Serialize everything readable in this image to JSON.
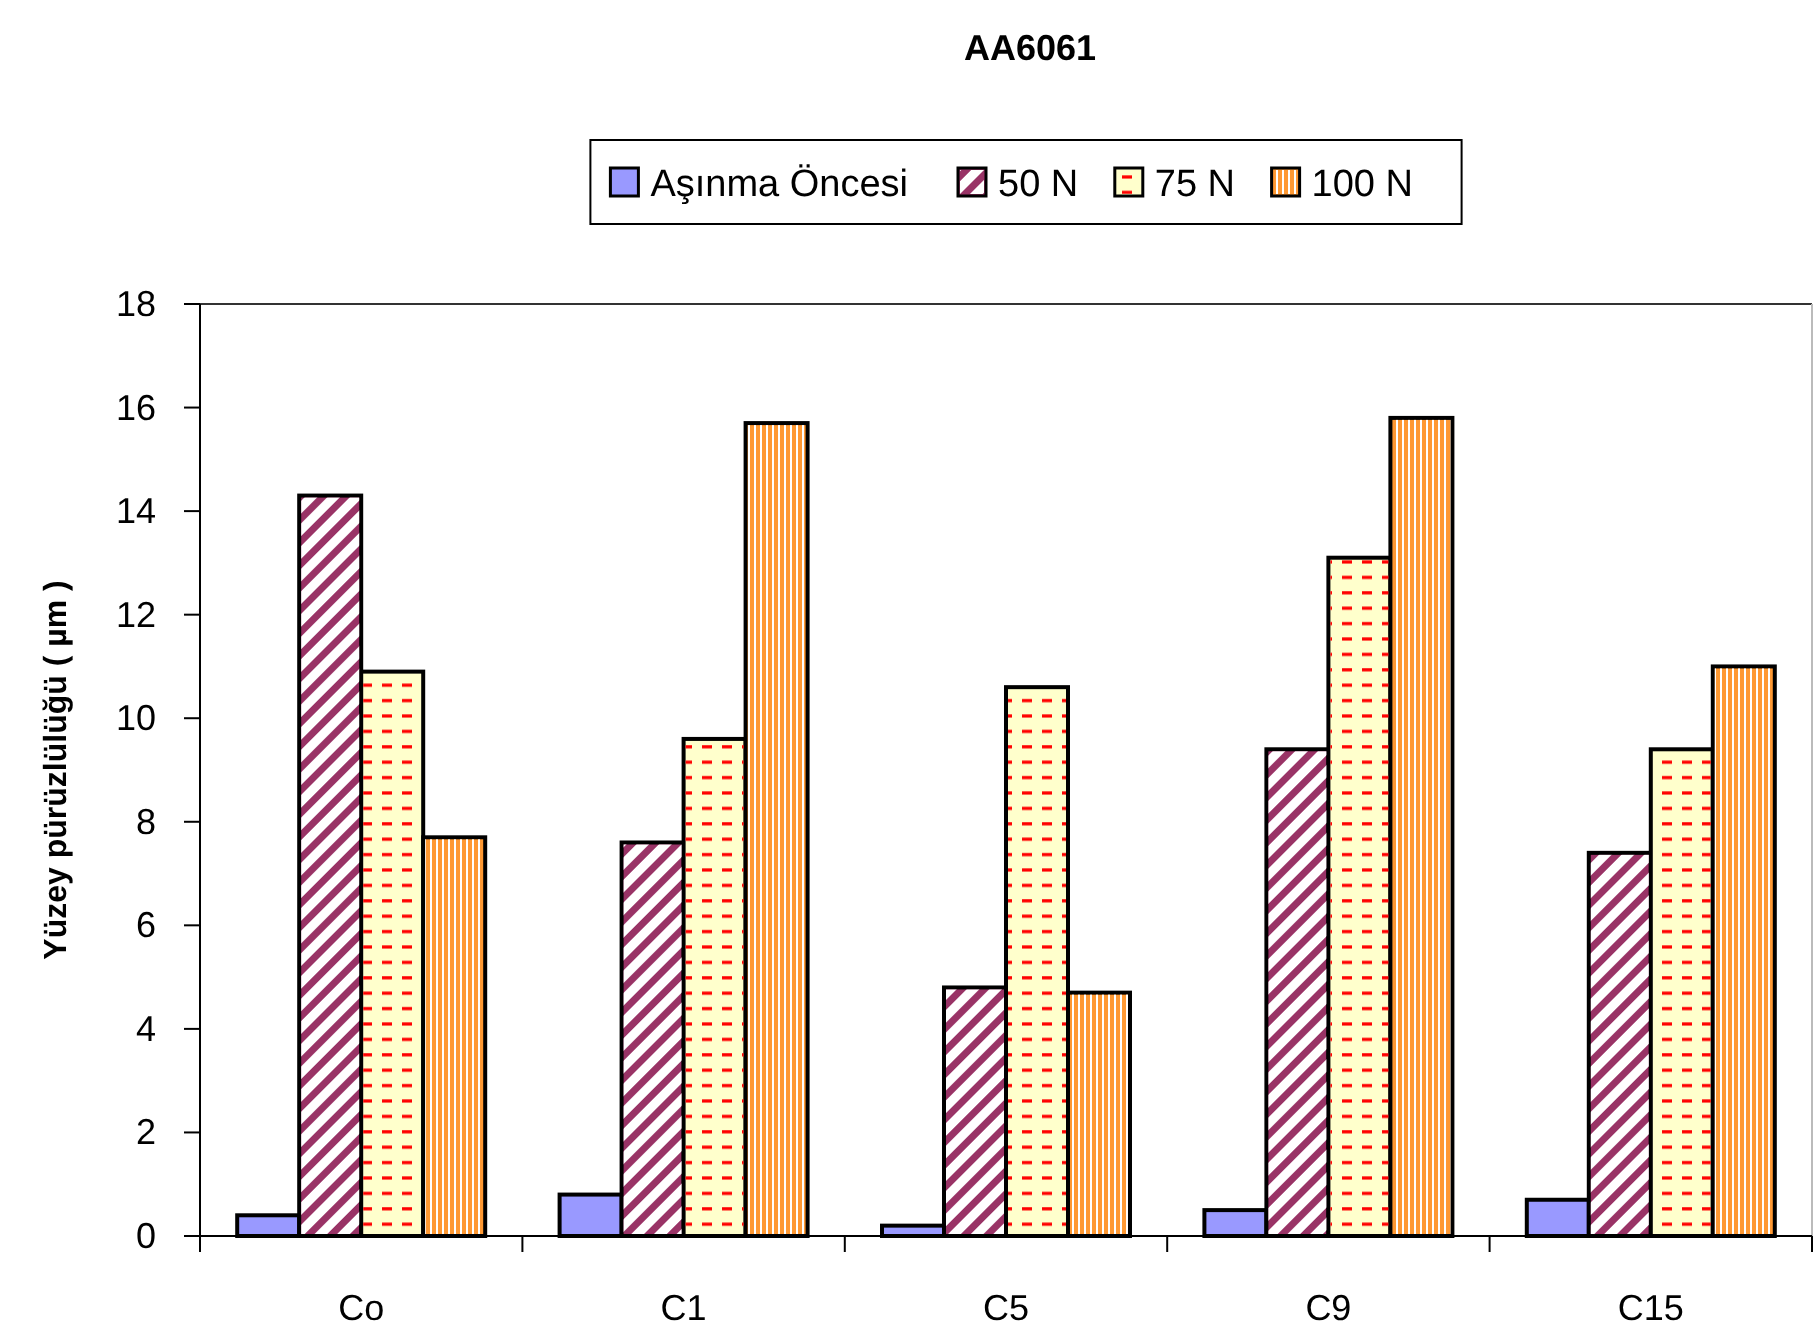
{
  "chart_data": {
    "type": "bar",
    "title": "AA6061",
    "ylabel": "Yüzey pürüzlülüğü ( µm )",
    "categories": [
      "Co",
      "C1",
      "C5",
      "C9",
      "C15"
    ],
    "series": [
      {
        "name": "Aşınma Öncesi",
        "color": "#9999ff",
        "values": [
          0.4,
          0.8,
          0.2,
          0.5,
          0.7
        ]
      },
      {
        "name": "50 N",
        "color": "#993366",
        "values": [
          14.3,
          7.6,
          4.8,
          9.4,
          7.4
        ]
      },
      {
        "name": "75 N",
        "color": "#ffffcc",
        "values": [
          10.9,
          9.6,
          10.6,
          13.1,
          9.4
        ]
      },
      {
        "name": "100 N",
        "color": "#ff9933",
        "values": [
          7.7,
          15.7,
          4.7,
          15.8,
          11.0
        ]
      }
    ],
    "ylim": [
      0,
      18
    ],
    "yticks": [
      0,
      2,
      4,
      6,
      8,
      10,
      12,
      14,
      16,
      18
    ],
    "grid": false,
    "legend": "top"
  }
}
